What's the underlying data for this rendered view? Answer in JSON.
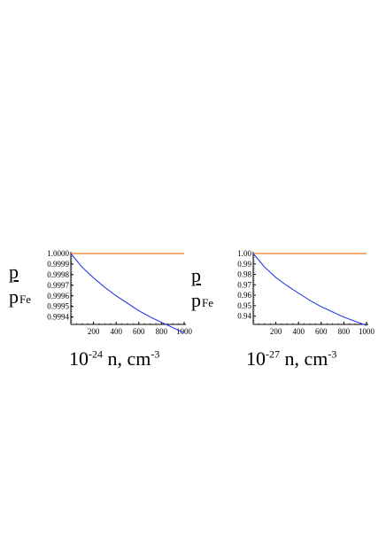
{
  "chart_data": [
    {
      "type": "line",
      "ylabel": {
        "top": "p",
        "bottom": "p",
        "subscript": "Fe"
      },
      "xlabel": {
        "prefix": "10",
        "exponent": "-24",
        "mid": " n, cm",
        "unit_exponent": "-3"
      },
      "xlim": [
        0,
        1000
      ],
      "ylim": [
        0.99933,
        1.0
      ],
      "xticks": [
        200,
        400,
        600,
        800,
        1000
      ],
      "yticks": [
        1.0,
        0.9999,
        0.9998,
        0.9997,
        0.9996,
        0.9995,
        0.9994
      ],
      "ytick_labels": [
        "1.0000",
        "0.9999",
        "0.9998",
        "0.9997",
        "0.9996",
        "0.9995",
        "0.9994"
      ],
      "series": [
        {
          "color": "#f0a060",
          "x": [
            0,
            1000
          ],
          "y": [
            1.0,
            1.0
          ]
        },
        {
          "color": "#2a3de8",
          "x": [
            0,
            100,
            200,
            300,
            400,
            500,
            600,
            700,
            800,
            900,
            1000
          ],
          "y": [
            1.0,
            0.99987,
            0.99977,
            0.99968,
            0.9996,
            0.99953,
            0.99946,
            0.9994,
            0.99935,
            0.9993,
            0.99925
          ]
        }
      ]
    },
    {
      "type": "line",
      "ylabel": {
        "top": "p",
        "bottom": "p",
        "subscript": "Fe"
      },
      "xlabel": {
        "prefix": "10",
        "exponent": "-27",
        "mid": " n, cm",
        "unit_exponent": "-3"
      },
      "xlim": [
        0,
        1000
      ],
      "ylim": [
        0.932,
        1.0
      ],
      "xticks": [
        200,
        400,
        600,
        800,
        1000
      ],
      "yticks": [
        1.0,
        0.99,
        0.98,
        0.97,
        0.96,
        0.95,
        0.94
      ],
      "ytick_labels": [
        "1.00",
        "0.99",
        "0.98",
        "0.97",
        "0.96",
        "0.95",
        "0.94"
      ],
      "series": [
        {
          "color": "#f0a060",
          "x": [
            0,
            1000
          ],
          "y": [
            1.0,
            1.0
          ]
        },
        {
          "color": "#2a3de8",
          "x": [
            0,
            100,
            200,
            300,
            400,
            500,
            600,
            700,
            800,
            900,
            1000
          ],
          "y": [
            1.0,
            0.987,
            0.977,
            0.969,
            0.962,
            0.955,
            0.949,
            0.944,
            0.939,
            0.935,
            0.931
          ]
        }
      ]
    }
  ]
}
